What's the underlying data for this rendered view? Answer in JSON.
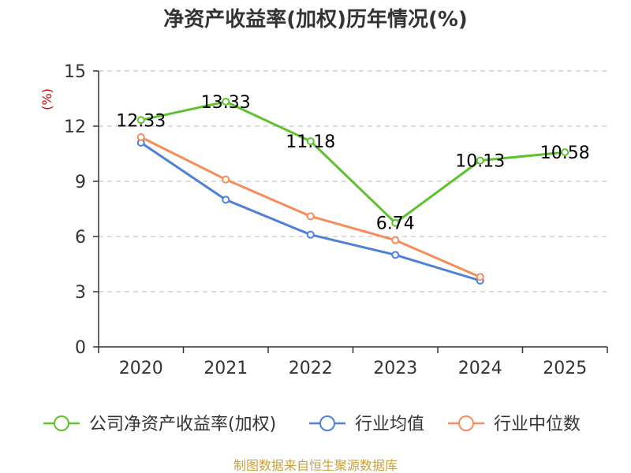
{
  "chart_data": {
    "type": "line",
    "title": "净资产收益率(加权)历年情况(%)",
    "unit_label": "(%)",
    "categories": [
      "2020",
      "2021",
      "2022",
      "2023",
      "2024",
      "2025"
    ],
    "ylim": [
      0,
      15
    ],
    "yticks": [
      "0",
      "3",
      "6",
      "9",
      "12",
      "15"
    ],
    "grid": true,
    "legend_position": "bottom",
    "series": [
      {
        "name": "公司净资产收益率(加权)",
        "color": "#5fc12d",
        "values": [
          12.33,
          13.33,
          11.18,
          6.74,
          10.13,
          10.58
        ],
        "labels": [
          "12.33",
          "13.33",
          "11.18",
          "6.74",
          "10.13",
          "10.58"
        ]
      },
      {
        "name": "行业均值",
        "color": "#4e7fd9",
        "values": [
          11.1,
          8.0,
          6.1,
          5.0,
          3.6,
          null
        ]
      },
      {
        "name": "行业中位数",
        "color": "#f58c5a",
        "values": [
          11.4,
          9.1,
          7.1,
          5.8,
          3.8,
          null
        ]
      }
    ],
    "source": "制图数据来自恒生聚源数据库"
  }
}
